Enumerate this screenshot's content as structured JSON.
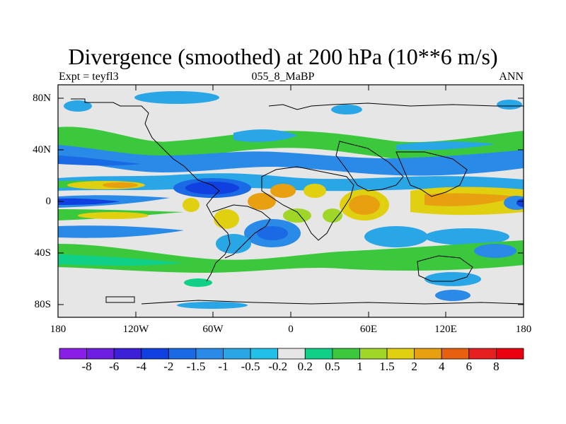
{
  "title": "Divergence (smoothed) at 200 hPa (10**6 m/s)",
  "subtitle_left": "Expt = teyfl3",
  "subtitle_center": "055_8_MaBP",
  "subtitle_right": "ANN",
  "y_ticks": [
    "80N",
    "40N",
    "0",
    "40S",
    "80S"
  ],
  "x_ticks": [
    "180",
    "120W",
    "60W",
    "0",
    "60E",
    "120E",
    "180"
  ],
  "colorbar_labels": [
    "-8",
    "-6",
    "-4",
    "-2",
    "-1.5",
    "-1",
    "-0.5",
    "-0.2",
    "0.2",
    "0.5",
    "1",
    "1.5",
    "2",
    "4",
    "6",
    "8"
  ],
  "colorbar_colors": [
    "#8a1fe6",
    "#6e1ee0",
    "#3b20d8",
    "#1040e0",
    "#1a6ae6",
    "#2a8ae8",
    "#28a6e6",
    "#20c0e8",
    "#e6e6e6",
    "#10d088",
    "#3cc83c",
    "#a0d628",
    "#e0d010",
    "#e8a010",
    "#e66010",
    "#e62020",
    "#e80010"
  ],
  "chart_data": {
    "type": "heatmap",
    "title": "Divergence (smoothed) at 200 hPa (10**6 m/s)",
    "x_range": [
      -180,
      180
    ],
    "y_range": [
      -90,
      90
    ],
    "contour_levels": [
      -8,
      -6,
      -4,
      -2,
      -1.5,
      -1,
      -0.5,
      -0.2,
      0.2,
      0.5,
      1,
      1.5,
      2,
      4,
      6,
      8
    ],
    "features": [
      {
        "region": "Tropical Pacific near dateline, equator",
        "sign": "convergence",
        "approx_value": -4
      },
      {
        "region": "Tropical Indian Ocean / Maritime Continent",
        "sign": "divergence",
        "approx_value": 2
      },
      {
        "region": "Western Pacific 10N-10S",
        "sign": "divergence",
        "approx_value": 2
      },
      {
        "region": "Central Africa",
        "sign": "divergence",
        "approx_value": 2
      },
      {
        "region": "Eastern tropical Atlantic",
        "sign": "divergence",
        "approx_value": 1.5
      },
      {
        "region": "Tropical Atlantic / Caribbean 15N",
        "sign": "convergence",
        "approx_value": -2
      },
      {
        "region": "South Atlantic 25S",
        "sign": "convergence",
        "approx_value": -2
      },
      {
        "region": "Mid-latitude jet belts 40N and 40S",
        "sign": "mixed",
        "approx_value": 0.5
      }
    ]
  }
}
